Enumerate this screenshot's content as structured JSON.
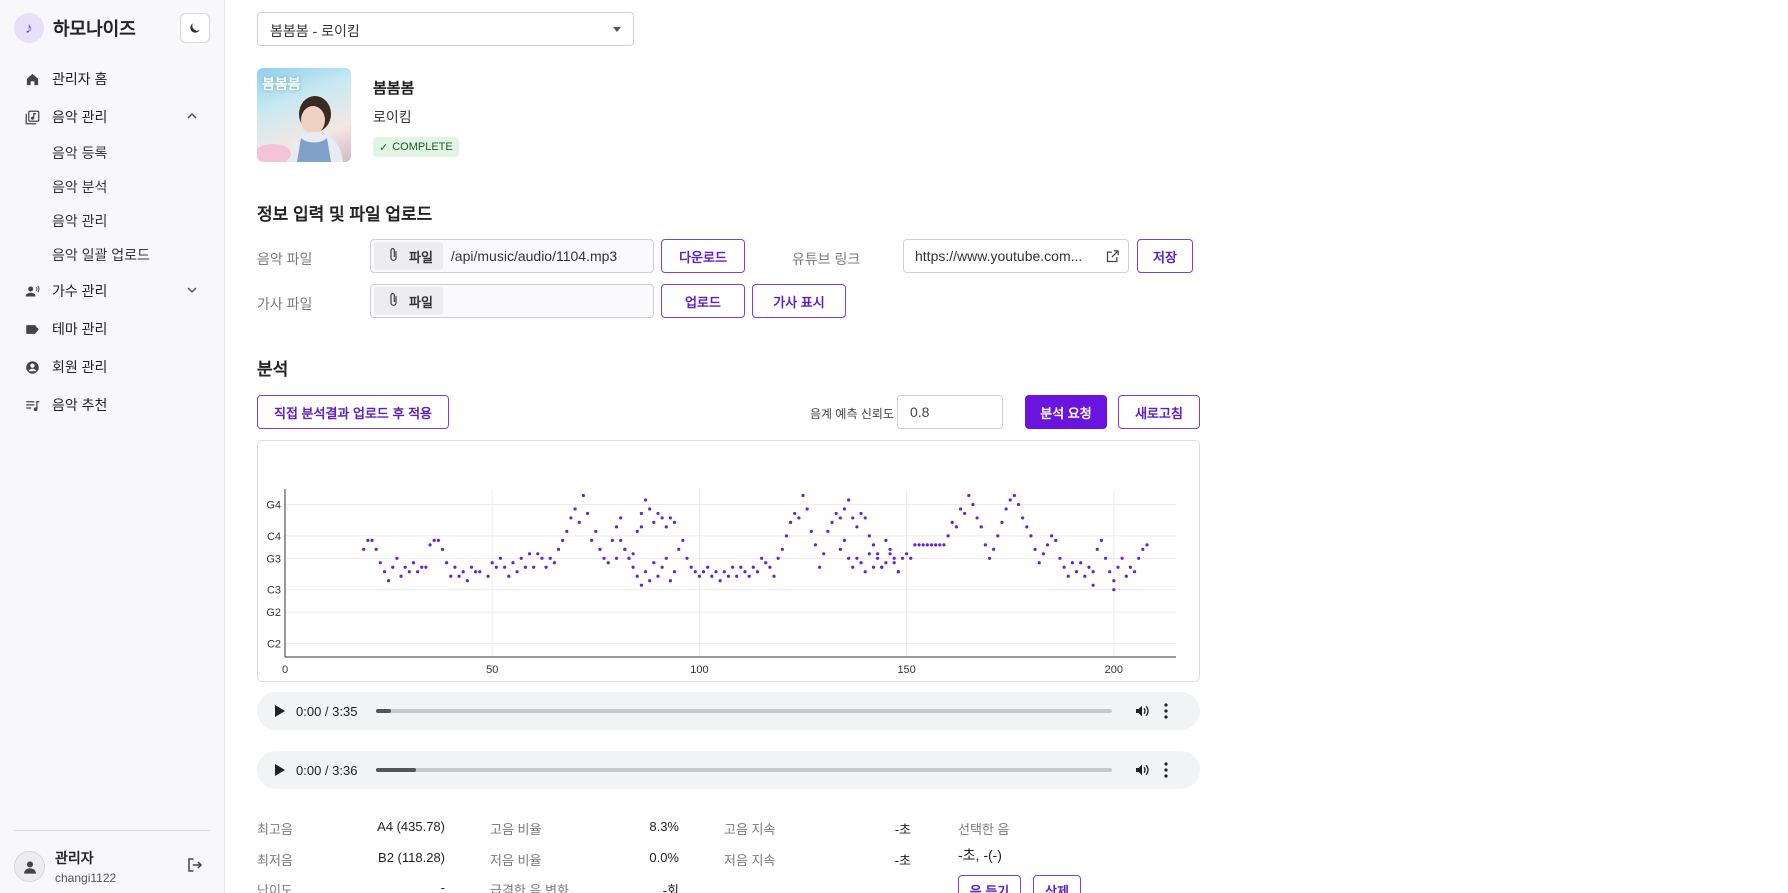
{
  "brand": {
    "name": "하모나이즈",
    "logo_glyph": "♪"
  },
  "sidebar": {
    "items": [
      {
        "label": "관리자 홈",
        "icon": "home-icon"
      },
      {
        "label": "음악 관리",
        "icon": "music-library-icon",
        "expanded": true,
        "children": [
          "음악 등록",
          "음악 분석",
          "음악 관리",
          "음악 일괄 업로드"
        ]
      },
      {
        "label": "가수 관리",
        "icon": "singer-icon",
        "expanded": false
      },
      {
        "label": "테마 관리",
        "icon": "tag-icon"
      },
      {
        "label": "회원 관리",
        "icon": "account-icon"
      },
      {
        "label": "음악 추천",
        "icon": "queue-music-icon"
      }
    ],
    "user": {
      "name": "관리자",
      "id": "changi1122"
    }
  },
  "song_select": {
    "value": "봄봄봄 - 로이킴"
  },
  "song": {
    "title": "봄봄봄",
    "artist": "로이킴",
    "status": "COMPLETE",
    "cover_text": "봄봄봄"
  },
  "upload_section": {
    "title": "정보 입력 및 파일 업로드",
    "music_file_label": "음악 파일",
    "lyrics_file_label": "가사 파일",
    "file_chip": "파일",
    "music_file_path": "/api/music/audio/1104.mp3",
    "download_btn": "다운로드",
    "upload_btn": "업로드",
    "lyrics_show_btn": "가사 표시",
    "youtube_label": "유튜브 링크",
    "youtube_value": "https://www.youtube.com...",
    "save_btn": "저장"
  },
  "analysis_section": {
    "title": "분석",
    "manual_upload_btn": "직접 분석결과 업로드 후 적용",
    "confidence_label": "음계 예측 신뢰도",
    "confidence_value": "0.8",
    "request_btn": "분석 요청",
    "refresh_btn": "새로고침"
  },
  "chart_data": {
    "type": "scatter",
    "title": "",
    "xlabel": "",
    "ylabel": "",
    "xlim": [
      0,
      215
    ],
    "x_ticks": [
      0,
      50,
      100,
      150,
      200
    ],
    "y_ticks": [
      {
        "label": "C2",
        "midi": 36
      },
      {
        "label": "G2",
        "midi": 43
      },
      {
        "label": "C3",
        "midi": 48
      },
      {
        "label": "G3",
        "midi": 55
      },
      {
        "label": "C4",
        "midi": 60
      },
      {
        "label": "G4",
        "midi": 67
      }
    ],
    "ylim": [
      33,
      70
    ],
    "color": "#6a1fd0",
    "grid": true,
    "series": [
      {
        "points": [
          [
            19,
            57
          ],
          [
            20,
            59
          ],
          [
            21,
            59
          ],
          [
            22,
            57
          ],
          [
            23,
            54
          ],
          [
            24,
            52
          ],
          [
            25,
            50
          ],
          [
            26,
            53
          ],
          [
            27,
            55
          ],
          [
            28,
            51
          ],
          [
            29,
            53
          ],
          [
            30,
            52
          ],
          [
            31,
            54
          ],
          [
            32,
            52
          ],
          [
            33,
            53
          ],
          [
            34,
            53
          ],
          [
            35,
            58
          ],
          [
            36,
            59
          ],
          [
            37,
            59
          ],
          [
            38,
            57
          ],
          [
            39,
            54
          ],
          [
            40,
            51
          ],
          [
            41,
            53
          ],
          [
            42,
            51
          ],
          [
            43,
            52
          ],
          [
            44,
            50
          ],
          [
            45,
            53
          ],
          [
            46,
            52
          ],
          [
            47,
            52
          ],
          [
            49,
            51
          ],
          [
            50,
            54
          ],
          [
            51,
            53
          ],
          [
            52,
            55
          ],
          [
            53,
            53
          ],
          [
            54,
            51
          ],
          [
            55,
            54
          ],
          [
            56,
            52
          ],
          [
            57,
            55
          ],
          [
            58,
            53
          ],
          [
            59,
            56
          ],
          [
            60,
            53
          ],
          [
            61,
            56
          ],
          [
            62,
            55
          ],
          [
            63,
            53
          ],
          [
            64,
            55
          ],
          [
            65,
            54
          ],
          [
            66,
            57
          ],
          [
            67,
            59
          ],
          [
            68,
            61
          ],
          [
            69,
            64
          ],
          [
            70,
            66
          ],
          [
            71,
            63
          ],
          [
            72,
            69
          ],
          [
            73,
            65
          ],
          [
            74,
            59
          ],
          [
            75,
            61
          ],
          [
            76,
            57
          ],
          [
            77,
            55
          ],
          [
            78,
            54
          ],
          [
            79,
            59
          ],
          [
            80,
            62
          ],
          [
            81,
            64
          ],
          [
            82,
            57
          ],
          [
            83,
            55
          ],
          [
            84,
            56
          ],
          [
            85,
            61
          ],
          [
            86,
            65
          ],
          [
            87,
            68
          ],
          [
            88,
            66
          ],
          [
            89,
            63
          ],
          [
            90,
            65
          ],
          [
            91,
            64
          ],
          [
            92,
            62
          ],
          [
            93,
            64
          ],
          [
            94,
            63
          ],
          [
            80,
            55
          ],
          [
            86,
            62
          ]
        ]
      },
      {
        "points": [
          [
            81,
            59
          ],
          [
            82,
            57
          ],
          [
            83,
            55
          ],
          [
            84,
            53
          ],
          [
            85,
            51
          ],
          [
            86,
            49
          ],
          [
            87,
            52
          ],
          [
            88,
            50
          ],
          [
            89,
            54
          ],
          [
            90,
            51
          ],
          [
            91,
            53
          ],
          [
            92,
            55
          ],
          [
            93,
            50
          ],
          [
            94,
            52
          ],
          [
            95,
            57
          ],
          [
            96,
            59
          ],
          [
            97,
            55
          ],
          [
            98,
            53
          ],
          [
            99,
            52
          ],
          [
            100,
            51
          ],
          [
            101,
            52
          ],
          [
            102,
            53
          ],
          [
            103,
            51
          ],
          [
            104,
            52
          ],
          [
            105,
            50
          ],
          [
            106,
            52
          ],
          [
            107,
            51
          ],
          [
            108,
            53
          ],
          [
            109,
            51
          ],
          [
            110,
            53
          ],
          [
            111,
            52
          ],
          [
            112,
            51
          ],
          [
            113,
            53
          ],
          [
            114,
            52
          ],
          [
            115,
            55
          ],
          [
            116,
            54
          ],
          [
            117,
            53
          ],
          [
            118,
            51
          ],
          [
            119,
            55
          ],
          [
            120,
            57
          ],
          [
            121,
            60
          ],
          [
            122,
            63
          ],
          [
            123,
            65
          ],
          [
            124,
            64
          ],
          [
            125,
            69
          ],
          [
            126,
            66
          ],
          [
            127,
            61
          ],
          [
            128,
            58
          ],
          [
            129,
            53
          ],
          [
            130,
            56
          ],
          [
            131,
            61
          ],
          [
            132,
            63
          ],
          [
            133,
            65
          ],
          [
            134,
            64
          ],
          [
            135,
            66
          ],
          [
            136,
            68
          ],
          [
            137,
            64
          ],
          [
            138,
            62
          ],
          [
            139,
            65
          ],
          [
            140,
            64
          ],
          [
            141,
            60
          ],
          [
            142,
            58
          ],
          [
            143,
            56
          ],
          [
            144,
            53
          ],
          [
            145,
            54
          ],
          [
            146,
            57
          ],
          [
            147,
            55
          ],
          [
            148,
            52
          ]
        ]
      },
      {
        "points": [
          [
            134,
            57
          ],
          [
            135,
            59
          ],
          [
            136,
            55
          ],
          [
            137,
            53
          ],
          [
            138,
            55
          ],
          [
            139,
            54
          ],
          [
            140,
            52
          ],
          [
            141,
            56
          ],
          [
            142,
            53
          ],
          [
            143,
            55
          ],
          [
            144,
            53
          ],
          [
            145,
            59
          ],
          [
            146,
            56
          ],
          [
            147,
            54
          ],
          [
            148,
            52
          ],
          [
            149,
            55
          ],
          [
            150,
            56
          ],
          [
            151,
            55
          ],
          [
            152,
            58
          ],
          [
            153,
            58
          ],
          [
            154,
            58
          ],
          [
            155,
            58
          ],
          [
            156,
            58
          ],
          [
            157,
            58
          ],
          [
            158,
            58
          ],
          [
            159,
            58
          ],
          [
            160,
            60
          ],
          [
            161,
            63
          ],
          [
            162,
            62
          ],
          [
            163,
            66
          ],
          [
            164,
            65
          ],
          [
            165,
            69
          ],
          [
            166,
            67
          ],
          [
            167,
            64
          ],
          [
            168,
            62
          ],
          [
            169,
            58
          ],
          [
            170,
            55
          ],
          [
            171,
            57
          ],
          [
            172,
            60
          ],
          [
            173,
            63
          ],
          [
            174,
            66
          ],
          [
            175,
            68
          ],
          [
            176,
            69
          ],
          [
            177,
            67
          ],
          [
            178,
            64
          ],
          [
            179,
            62
          ],
          [
            180,
            60
          ],
          [
            181,
            57
          ],
          [
            182,
            54
          ],
          [
            183,
            56
          ],
          [
            184,
            58
          ],
          [
            185,
            60
          ],
          [
            186,
            59
          ],
          [
            187,
            55
          ],
          [
            188,
            53
          ],
          [
            189,
            51
          ],
          [
            190,
            54
          ],
          [
            191,
            52
          ],
          [
            192,
            54
          ],
          [
            193,
            51
          ],
          [
            194,
            53
          ],
          [
            195,
            52
          ],
          [
            196,
            57
          ],
          [
            197,
            59
          ],
          [
            198,
            55
          ],
          [
            199,
            52
          ],
          [
            200,
            50
          ],
          [
            201,
            53
          ],
          [
            202,
            55
          ],
          [
            203,
            51
          ],
          [
            204,
            53
          ],
          [
            205,
            52
          ],
          [
            206,
            55
          ],
          [
            207,
            57
          ],
          [
            208,
            58
          ],
          [
            195,
            49
          ],
          [
            200,
            48
          ]
        ]
      }
    ]
  },
  "audio_players": [
    {
      "time": "0:00 / 3:35",
      "progress": 0.02
    },
    {
      "time": "0:00 / 3:36",
      "progress": 0.055
    }
  ],
  "stats": {
    "highest_label": "최고음",
    "highest_value": "A4 (435.78)",
    "lowest_label": "최저음",
    "lowest_value": "B2 (118.28)",
    "difficulty_label": "난이도",
    "difficulty_value": "-",
    "high_ratio_label": "고음 비율",
    "high_ratio_value": "8.3%",
    "low_ratio_label": "저음 비율",
    "low_ratio_value": "0.0%",
    "sharp_change_label": "급격한 음 변화",
    "sharp_change_value": "-회",
    "high_sustain_label": "고음 지속",
    "high_sustain_value": "-초",
    "low_sustain_label": "저음 지속",
    "low_sustain_value": "-초",
    "selected_note_label": "선택한 음",
    "selected_note_value": "-초, -(-)",
    "listen_btn": "음 듣기",
    "delete_btn": "삭제"
  }
}
